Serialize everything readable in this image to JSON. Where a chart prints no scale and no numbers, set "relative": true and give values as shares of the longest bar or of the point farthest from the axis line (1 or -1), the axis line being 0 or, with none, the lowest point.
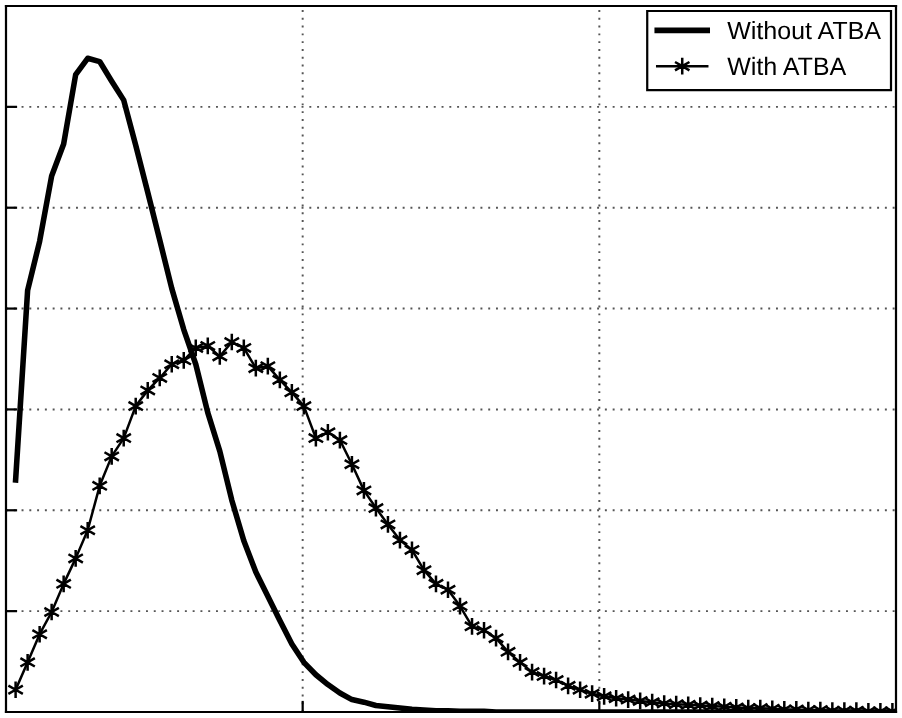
{
  "chart_data": {
    "type": "line",
    "relative": true,
    "grid": true,
    "legend": "top right",
    "categories": [
      null,
      null,
      null,
      null,
      null,
      null,
      null,
      null,
      null,
      null,
      null,
      null,
      null,
      null,
      null,
      null,
      null,
      null,
      null,
      null,
      null,
      null,
      null,
      null,
      null,
      null,
      null,
      null,
      null,
      null,
      null,
      null,
      null,
      null,
      null,
      null,
      null,
      null,
      null,
      null,
      null,
      null,
      null,
      null,
      null,
      null,
      null,
      null,
      null,
      null,
      null,
      null,
      null,
      null,
      null,
      null,
      null,
      null,
      null,
      null,
      null,
      null,
      null,
      null,
      null,
      null,
      null,
      null,
      null,
      null,
      null,
      null,
      null,
      null
    ],
    "series": [
      {
        "name": "Without ATBA",
        "color": "#000000",
        "marker": "none",
        "line_style": "solid",
        "values": [
          0.355,
          0.645,
          0.72,
          0.82,
          0.869,
          0.975,
          1,
          0.995,
          0.965,
          0.936,
          0.867,
          0.795,
          0.722,
          0.648,
          0.585,
          0.532,
          0.458,
          0.399,
          0.324,
          0.262,
          0.214,
          0.177,
          0.14,
          0.104,
          0.076,
          0.057,
          0.042,
          0.029,
          0.019,
          0.015,
          0.01,
          0.008,
          0.006,
          0.004,
          0.003,
          0.002,
          0.002,
          0.001,
          0.001,
          0.001,
          0,
          0,
          0,
          0,
          0,
          0,
          0,
          0,
          0,
          0,
          0,
          0,
          0,
          0,
          0,
          0,
          0,
          0,
          0,
          0,
          0,
          0,
          0,
          0,
          0,
          0,
          0,
          0,
          0,
          0,
          0,
          0,
          0,
          0
        ]
      },
      {
        "name": "With ATBA",
        "color": "#000000",
        "marker": "cross",
        "line_style": "solid",
        "values": [
          0.034,
          0.076,
          0.119,
          0.153,
          0.196,
          0.235,
          0.278,
          0.346,
          0.391,
          0.419,
          0.468,
          0.492,
          0.511,
          0.532,
          0.538,
          0.557,
          0.56,
          0.544,
          0.566,
          0.557,
          0.526,
          0.529,
          0.508,
          0.489,
          0.468,
          0.419,
          0.428,
          0.416,
          0.379,
          0.339,
          0.312,
          0.287,
          0.263,
          0.248,
          0.217,
          0.196,
          0.187,
          0.162,
          0.131,
          0.125,
          0.113,
          0.092,
          0.076,
          0.061,
          0.055,
          0.049,
          0.04,
          0.034,
          0.028,
          0.024,
          0.021,
          0.019,
          0.017,
          0.015,
          0.013,
          0.012,
          0.011,
          0.01,
          0.009,
          0.008,
          0.007,
          0.006,
          0.006,
          0.005,
          0.004,
          0.004,
          0.003,
          0.003,
          0.002,
          0.002,
          0.002,
          0.001,
          0.001,
          0.001
        ]
      }
    ]
  }
}
